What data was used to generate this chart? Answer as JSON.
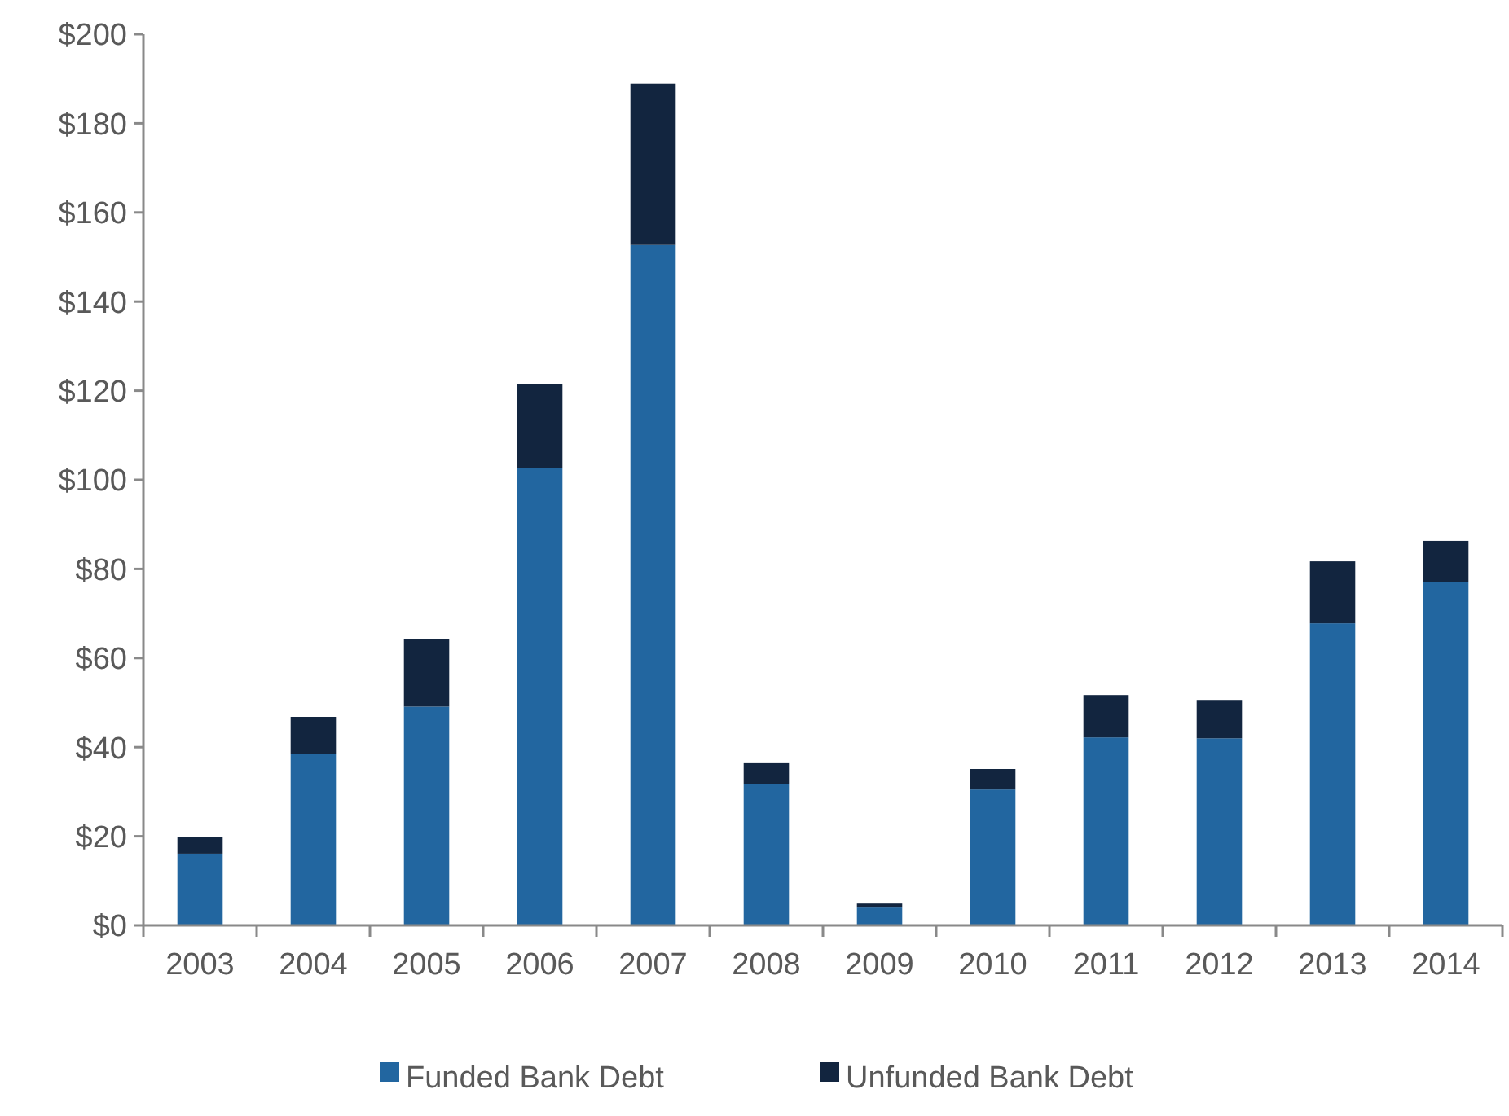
{
  "chart_data": {
    "type": "bar",
    "stacked": true,
    "categories": [
      "2003",
      "2004",
      "2005",
      "2006",
      "2007",
      "2008",
      "2009",
      "2010",
      "2011",
      "2012",
      "2013",
      "2014"
    ],
    "series": [
      {
        "name": "Funded Bank Debt",
        "color": "#2266a0",
        "values": [
          16.1,
          38.4,
          49.1,
          102.6,
          152.7,
          31.8,
          4,
          30.5,
          42.2,
          42,
          67.8,
          77
        ]
      },
      {
        "name": "Unfunded Bank Debt",
        "color": "#12253f",
        "values": [
          3.8,
          8.4,
          15.1,
          18.8,
          36.2,
          4.6,
          0.9,
          4.6,
          9.5,
          8.6,
          13.9,
          9.3
        ]
      }
    ],
    "ylim": [
      0,
      200
    ],
    "yticks": [
      {
        "value": 0,
        "label": "$0"
      },
      {
        "value": 20,
        "label": "$20"
      },
      {
        "value": 40,
        "label": "$40"
      },
      {
        "value": 60,
        "label": "$60"
      },
      {
        "value": 80,
        "label": "$80"
      },
      {
        "value": 100,
        "label": "$100"
      },
      {
        "value": 120,
        "label": "$120"
      },
      {
        "value": 140,
        "label": "$140"
      },
      {
        "value": 160,
        "label": "$160"
      },
      {
        "value": 180,
        "label": "$180"
      },
      {
        "value": 200,
        "label": "$200"
      }
    ],
    "grid": false,
    "legend": "bottom"
  }
}
